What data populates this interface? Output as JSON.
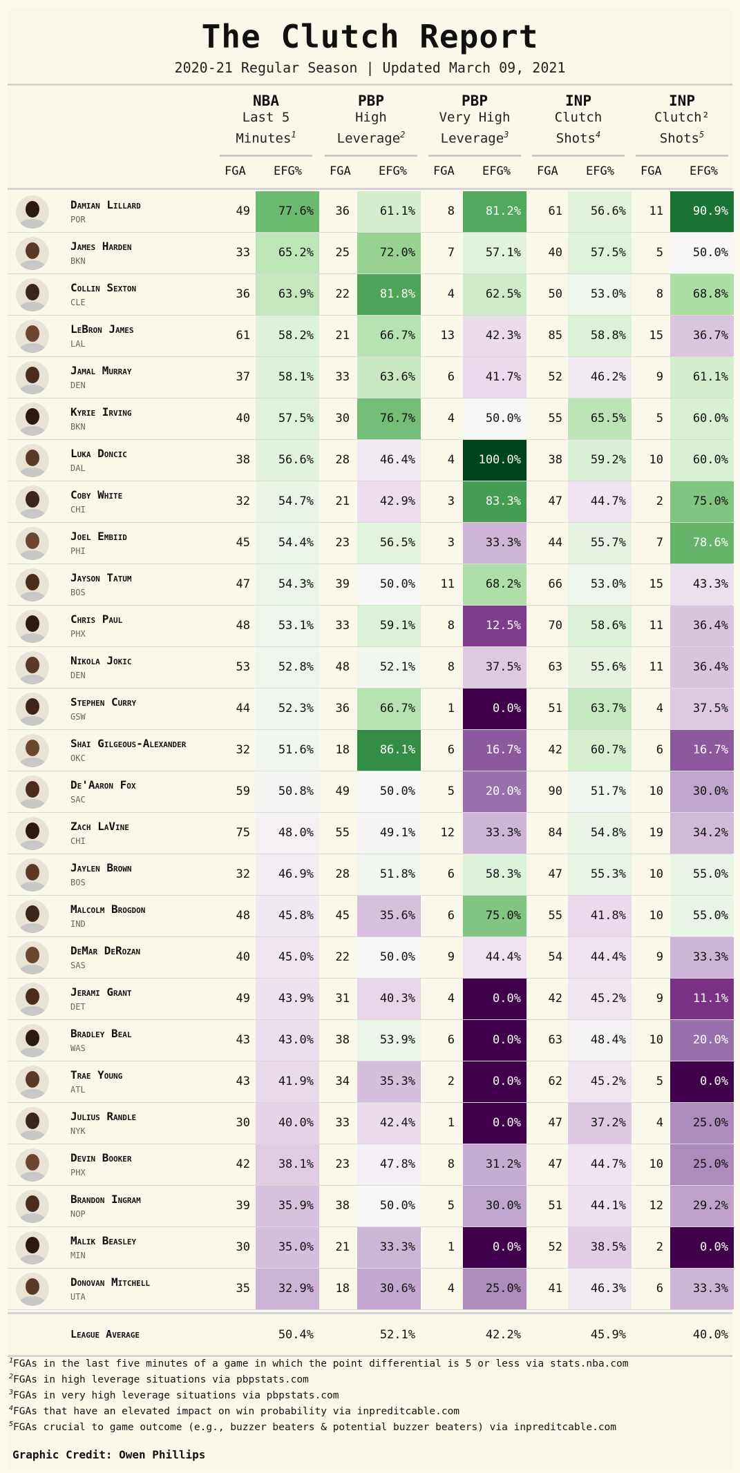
{
  "title": "The Clutch Report",
  "subtitle": "2020-21 Regular Season | Updated March 09, 2021",
  "groups": [
    {
      "line1": "NBA",
      "line2": "Last 5",
      "line3": "Minutes",
      "sup": "1"
    },
    {
      "line1": "PBP",
      "line2": "High",
      "line3": "Leverage",
      "sup": "2"
    },
    {
      "line1": "PBP",
      "line2": "Very High",
      "line3": "Leverage",
      "sup": "3"
    },
    {
      "line1": "INP",
      "line2": "Clutch",
      "line3": "Shots",
      "sup": "4"
    },
    {
      "line1": "INP",
      "line2": "Clutch²",
      "line3": "Shots",
      "sup": "5"
    }
  ],
  "col_fga": "FGA",
  "col_efg": "EFG%",
  "players": [
    {
      "name": "Damian Lillard",
      "team": "POR",
      "stats": [
        [
          "49",
          "77.6%"
        ],
        [
          "36",
          "61.1%"
        ],
        [
          "8",
          "81.2%"
        ],
        [
          "61",
          "56.6%"
        ],
        [
          "11",
          "90.9%"
        ]
      ]
    },
    {
      "name": "James Harden",
      "team": "BKN",
      "stats": [
        [
          "33",
          "65.2%"
        ],
        [
          "25",
          "72.0%"
        ],
        [
          "7",
          "57.1%"
        ],
        [
          "40",
          "57.5%"
        ],
        [
          "5",
          "50.0%"
        ]
      ]
    },
    {
      "name": "Collin Sexton",
      "team": "CLE",
      "stats": [
        [
          "36",
          "63.9%"
        ],
        [
          "22",
          "81.8%"
        ],
        [
          "4",
          "62.5%"
        ],
        [
          "50",
          "53.0%"
        ],
        [
          "8",
          "68.8%"
        ]
      ]
    },
    {
      "name": "LeBron James",
      "team": "LAL",
      "stats": [
        [
          "61",
          "58.2%"
        ],
        [
          "21",
          "66.7%"
        ],
        [
          "13",
          "42.3%"
        ],
        [
          "85",
          "58.8%"
        ],
        [
          "15",
          "36.7%"
        ]
      ]
    },
    {
      "name": "Jamal Murray",
      "team": "DEN",
      "stats": [
        [
          "37",
          "58.1%"
        ],
        [
          "33",
          "63.6%"
        ],
        [
          "6",
          "41.7%"
        ],
        [
          "52",
          "46.2%"
        ],
        [
          "9",
          "61.1%"
        ]
      ]
    },
    {
      "name": "Kyrie Irving",
      "team": "BKN",
      "stats": [
        [
          "40",
          "57.5%"
        ],
        [
          "30",
          "76.7%"
        ],
        [
          "4",
          "50.0%"
        ],
        [
          "55",
          "65.5%"
        ],
        [
          "5",
          "60.0%"
        ]
      ]
    },
    {
      "name": "Luka Doncic",
      "team": "DAL",
      "stats": [
        [
          "38",
          "56.6%"
        ],
        [
          "28",
          "46.4%"
        ],
        [
          "4",
          "100.0%"
        ],
        [
          "38",
          "59.2%"
        ],
        [
          "10",
          "60.0%"
        ]
      ]
    },
    {
      "name": "Coby White",
      "team": "CHI",
      "stats": [
        [
          "32",
          "54.7%"
        ],
        [
          "21",
          "42.9%"
        ],
        [
          "3",
          "83.3%"
        ],
        [
          "47",
          "44.7%"
        ],
        [
          "2",
          "75.0%"
        ]
      ]
    },
    {
      "name": "Joel Embiid",
      "team": "PHI",
      "stats": [
        [
          "45",
          "54.4%"
        ],
        [
          "23",
          "56.5%"
        ],
        [
          "3",
          "33.3%"
        ],
        [
          "44",
          "55.7%"
        ],
        [
          "7",
          "78.6%"
        ]
      ]
    },
    {
      "name": "Jayson Tatum",
      "team": "BOS",
      "stats": [
        [
          "47",
          "54.3%"
        ],
        [
          "39",
          "50.0%"
        ],
        [
          "11",
          "68.2%"
        ],
        [
          "66",
          "53.0%"
        ],
        [
          "15",
          "43.3%"
        ]
      ]
    },
    {
      "name": "Chris Paul",
      "team": "PHX",
      "stats": [
        [
          "48",
          "53.1%"
        ],
        [
          "33",
          "59.1%"
        ],
        [
          "8",
          "12.5%"
        ],
        [
          "70",
          "58.6%"
        ],
        [
          "11",
          "36.4%"
        ]
      ]
    },
    {
      "name": "Nikola Jokic",
      "team": "DEN",
      "stats": [
        [
          "53",
          "52.8%"
        ],
        [
          "48",
          "52.1%"
        ],
        [
          "8",
          "37.5%"
        ],
        [
          "63",
          "55.6%"
        ],
        [
          "11",
          "36.4%"
        ]
      ]
    },
    {
      "name": "Stephen Curry",
      "team": "GSW",
      "stats": [
        [
          "44",
          "52.3%"
        ],
        [
          "36",
          "66.7%"
        ],
        [
          "1",
          "0.0%"
        ],
        [
          "51",
          "63.7%"
        ],
        [
          "4",
          "37.5%"
        ]
      ]
    },
    {
      "name": "Shai Gilgeous-Alexander",
      "team": "OKC",
      "stats": [
        [
          "32",
          "51.6%"
        ],
        [
          "18",
          "86.1%"
        ],
        [
          "6",
          "16.7%"
        ],
        [
          "42",
          "60.7%"
        ],
        [
          "6",
          "16.7%"
        ]
      ]
    },
    {
      "name": "De'Aaron Fox",
      "team": "SAC",
      "stats": [
        [
          "59",
          "50.8%"
        ],
        [
          "49",
          "50.0%"
        ],
        [
          "5",
          "20.0%"
        ],
        [
          "90",
          "51.7%"
        ],
        [
          "10",
          "30.0%"
        ]
      ]
    },
    {
      "name": "Zach LaVine",
      "team": "CHI",
      "stats": [
        [
          "75",
          "48.0%"
        ],
        [
          "55",
          "49.1%"
        ],
        [
          "12",
          "33.3%"
        ],
        [
          "84",
          "54.8%"
        ],
        [
          "19",
          "34.2%"
        ]
      ]
    },
    {
      "name": "Jaylen Brown",
      "team": "BOS",
      "stats": [
        [
          "32",
          "46.9%"
        ],
        [
          "28",
          "51.8%"
        ],
        [
          "6",
          "58.3%"
        ],
        [
          "47",
          "55.3%"
        ],
        [
          "10",
          "55.0%"
        ]
      ]
    },
    {
      "name": "Malcolm Brogdon",
      "team": "IND",
      "stats": [
        [
          "48",
          "45.8%"
        ],
        [
          "45",
          "35.6%"
        ],
        [
          "6",
          "75.0%"
        ],
        [
          "55",
          "41.8%"
        ],
        [
          "10",
          "55.0%"
        ]
      ]
    },
    {
      "name": "DeMar DeRozan",
      "team": "SAS",
      "stats": [
        [
          "40",
          "45.0%"
        ],
        [
          "22",
          "50.0%"
        ],
        [
          "9",
          "44.4%"
        ],
        [
          "54",
          "44.4%"
        ],
        [
          "9",
          "33.3%"
        ]
      ]
    },
    {
      "name": "Jerami Grant",
      "team": "DET",
      "stats": [
        [
          "49",
          "43.9%"
        ],
        [
          "31",
          "40.3%"
        ],
        [
          "4",
          "0.0%"
        ],
        [
          "42",
          "45.2%"
        ],
        [
          "9",
          "11.1%"
        ]
      ]
    },
    {
      "name": "Bradley Beal",
      "team": "WAS",
      "stats": [
        [
          "43",
          "43.0%"
        ],
        [
          "38",
          "53.9%"
        ],
        [
          "6",
          "0.0%"
        ],
        [
          "63",
          "48.4%"
        ],
        [
          "10",
          "20.0%"
        ]
      ]
    },
    {
      "name": "Trae Young",
      "team": "ATL",
      "stats": [
        [
          "43",
          "41.9%"
        ],
        [
          "34",
          "35.3%"
        ],
        [
          "2",
          "0.0%"
        ],
        [
          "62",
          "45.2%"
        ],
        [
          "5",
          "0.0%"
        ]
      ]
    },
    {
      "name": "Julius Randle",
      "team": "NYK",
      "stats": [
        [
          "30",
          "40.0%"
        ],
        [
          "33",
          "42.4%"
        ],
        [
          "1",
          "0.0%"
        ],
        [
          "47",
          "37.2%"
        ],
        [
          "4",
          "25.0%"
        ]
      ]
    },
    {
      "name": "Devin Booker",
      "team": "PHX",
      "stats": [
        [
          "42",
          "38.1%"
        ],
        [
          "23",
          "47.8%"
        ],
        [
          "8",
          "31.2%"
        ],
        [
          "47",
          "44.7%"
        ],
        [
          "10",
          "25.0%"
        ]
      ]
    },
    {
      "name": "Brandon Ingram",
      "team": "NOP",
      "stats": [
        [
          "39",
          "35.9%"
        ],
        [
          "38",
          "50.0%"
        ],
        [
          "5",
          "30.0%"
        ],
        [
          "51",
          "44.1%"
        ],
        [
          "12",
          "29.2%"
        ]
      ]
    },
    {
      "name": "Malik Beasley",
      "team": "MIN",
      "stats": [
        [
          "30",
          "35.0%"
        ],
        [
          "21",
          "33.3%"
        ],
        [
          "1",
          "0.0%"
        ],
        [
          "52",
          "38.5%"
        ],
        [
          "2",
          "0.0%"
        ]
      ]
    },
    {
      "name": "Donovan Mitchell",
      "team": "UTA",
      "stats": [
        [
          "35",
          "32.9%"
        ],
        [
          "18",
          "30.6%"
        ],
        [
          "4",
          "25.0%"
        ],
        [
          "41",
          "46.3%"
        ],
        [
          "6",
          "33.3%"
        ]
      ]
    }
  ],
  "league_average": {
    "label": "League Average",
    "values": [
      "50.4%",
      "52.1%",
      "42.2%",
      "45.9%",
      "40.0%"
    ]
  },
  "footnotes": [
    {
      "num": "1",
      "text": "FGAs in the last five minutes of a game in which the point differential is 5 or less via stats.nba.com"
    },
    {
      "num": "2",
      "text": "FGAs in high leverage situations via pbpstats.com"
    },
    {
      "num": "3",
      "text": "FGAs in very high leverage situations via pbpstats.com"
    },
    {
      "num": "4",
      "text": "FGAs that have an elevated impact on win probability via inpreditcable.com"
    },
    {
      "num": "5",
      "text": "FGAs crucial to game outcome (e.g., buzzer beaters & potential buzzer beaters) via inpreditcable.com"
    }
  ],
  "credit": "Graphic Credit: Owen Phillips",
  "colors": {
    "background": "#faf7eb",
    "high": "#00441b",
    "low": "#40004b",
    "neutral": "#f7f7f7"
  }
}
